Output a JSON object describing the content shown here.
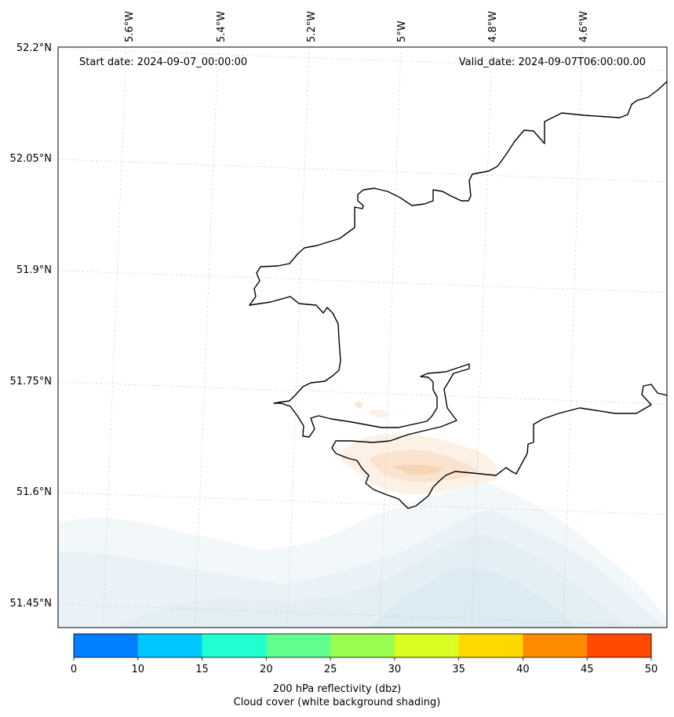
{
  "header": {
    "start_date": "Start date: 2024-09-07_00:00:00",
    "valid_date": "Valid_date: 2024-09-07T06:00:00.00"
  },
  "longitude_labels": [
    "5.6°W",
    "5.4°W",
    "5.2°W",
    "5°W",
    "4.8°W",
    "4.6°W"
  ],
  "latitude_labels": [
    "52.2°N",
    "52.05°N",
    "51.9°N",
    "51.75°N",
    "51.6°N",
    "51.45°N"
  ],
  "colorbar": {
    "ticks": [
      "0",
      "10",
      "15",
      "20",
      "25",
      "30",
      "35",
      "40",
      "45",
      "50"
    ],
    "colors": [
      "#0080ff",
      "#00c8ff",
      "#20ffd0",
      "#60ff90",
      "#98ff50",
      "#d8ff20",
      "#ffd800",
      "#ff8c00",
      "#ff4a00"
    ],
    "label_line1": "200 hPa reflectivity (dbz)",
    "label_line2": "Cloud cover (white background shading)"
  },
  "map": {
    "coastline_color": "#000000",
    "cloud_shading_color": "#dceaf2",
    "reflectivity_shading_color": "#f6cfa8"
  }
}
